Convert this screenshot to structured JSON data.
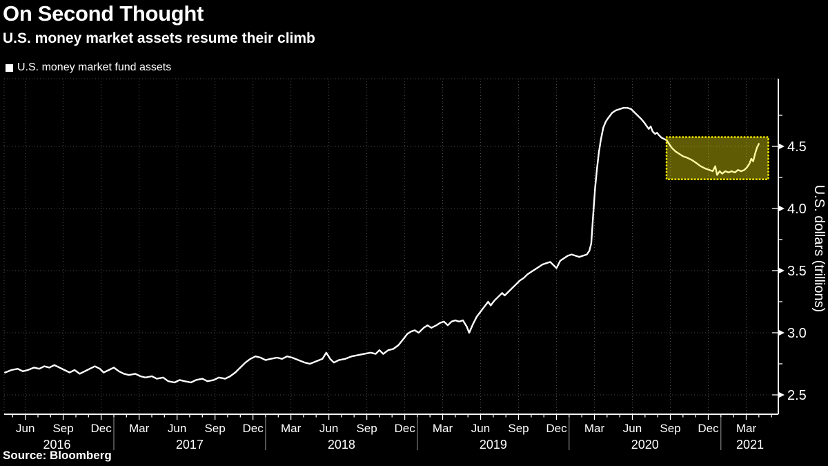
{
  "header": {
    "title": "On Second Thought",
    "subtitle": "U.S. money market assets resume their climb"
  },
  "source_label": "Source: Bloomberg",
  "colors": {
    "background": "#000000",
    "text": "#ffffff",
    "grid": "#4d4d4d",
    "line": "#ffffff",
    "year_divider": "#9a9a9a",
    "highlight_fill": "rgba(250,240,10,0.38)",
    "highlight_border": "#f7ea00"
  },
  "chart_data": {
    "type": "line",
    "title": "On Second Thought",
    "subtitle": "U.S. money market assets resume their climb",
    "xlabel": "",
    "ylabel": "U.S. dollars (trillions)",
    "legend_position": "top-left",
    "grid": "dotted",
    "x_start_month": "2016-04",
    "ylim": [
      2.34,
      5.02
    ],
    "y_ticks": [
      2.5,
      3.0,
      3.5,
      4.0,
      4.5
    ],
    "y_minor_ticks": [
      2.75,
      3.25,
      3.75,
      4.25,
      4.75
    ],
    "x_tick_labels": [
      {
        "m": 2,
        "label": "Jun"
      },
      {
        "m": 5,
        "label": "Sep"
      },
      {
        "m": 8,
        "label": "Dec"
      },
      {
        "m": 11,
        "label": "Mar"
      },
      {
        "m": 14,
        "label": "Jun"
      },
      {
        "m": 17,
        "label": "Sep"
      },
      {
        "m": 20,
        "label": "Dec"
      },
      {
        "m": 23,
        "label": "Mar"
      },
      {
        "m": 26,
        "label": "Jun"
      },
      {
        "m": 29,
        "label": "Sep"
      },
      {
        "m": 32,
        "label": "Dec"
      },
      {
        "m": 35,
        "label": "Mar"
      },
      {
        "m": 38,
        "label": "Jun"
      },
      {
        "m": 41,
        "label": "Sep"
      },
      {
        "m": 44,
        "label": "Dec"
      },
      {
        "m": 47,
        "label": "Mar"
      },
      {
        "m": 50,
        "label": "Jun"
      },
      {
        "m": 53,
        "label": "Sep"
      },
      {
        "m": 56,
        "label": "Dec"
      },
      {
        "m": 59,
        "label": "Mar"
      }
    ],
    "years": [
      {
        "label": "2016",
        "m_center": 4.5
      },
      {
        "label": "2017",
        "m_center": 15
      },
      {
        "label": "2018",
        "m_center": 27
      },
      {
        "label": "2019",
        "m_center": 39
      },
      {
        "label": "2020",
        "m_center": 51
      },
      {
        "label": "2021",
        "m_center": 59.3
      }
    ],
    "year_boundaries_m": [
      9,
      21,
      33,
      45,
      57
    ],
    "highlight_box": {
      "m_start": 52.7,
      "m_end": 60.75,
      "v_low": 4.235,
      "v_high": 4.575
    },
    "series": [
      {
        "name": "U.S. money market fund assets",
        "points": [
          [
            0.4,
            2.68
          ],
          [
            0.9,
            2.7
          ],
          [
            1.4,
            2.71
          ],
          [
            1.8,
            2.69
          ],
          [
            2.2,
            2.7
          ],
          [
            2.7,
            2.72
          ],
          [
            3.1,
            2.71
          ],
          [
            3.5,
            2.73
          ],
          [
            3.9,
            2.72
          ],
          [
            4.3,
            2.74
          ],
          [
            4.7,
            2.72
          ],
          [
            5.1,
            2.7
          ],
          [
            5.5,
            2.68
          ],
          [
            5.9,
            2.7
          ],
          [
            6.3,
            2.67
          ],
          [
            6.7,
            2.69
          ],
          [
            7.1,
            2.71
          ],
          [
            7.5,
            2.73
          ],
          [
            7.9,
            2.71
          ],
          [
            8.2,
            2.68
          ],
          [
            8.6,
            2.7
          ],
          [
            9.0,
            2.72
          ],
          [
            9.4,
            2.69
          ],
          [
            9.8,
            2.67
          ],
          [
            10.2,
            2.66
          ],
          [
            10.7,
            2.67
          ],
          [
            11.1,
            2.65
          ],
          [
            11.5,
            2.64
          ],
          [
            12.0,
            2.65
          ],
          [
            12.4,
            2.63
          ],
          [
            12.9,
            2.64
          ],
          [
            13.3,
            2.61
          ],
          [
            13.8,
            2.6
          ],
          [
            14.2,
            2.62
          ],
          [
            14.6,
            2.61
          ],
          [
            15.1,
            2.6
          ],
          [
            15.5,
            2.62
          ],
          [
            16.0,
            2.63
          ],
          [
            16.4,
            2.61
          ],
          [
            16.9,
            2.62
          ],
          [
            17.3,
            2.64
          ],
          [
            17.8,
            2.63
          ],
          [
            18.2,
            2.65
          ],
          [
            18.6,
            2.68
          ],
          [
            19.0,
            2.72
          ],
          [
            19.4,
            2.76
          ],
          [
            19.8,
            2.79
          ],
          [
            20.2,
            2.81
          ],
          [
            20.6,
            2.8
          ],
          [
            21.0,
            2.78
          ],
          [
            21.4,
            2.79
          ],
          [
            21.9,
            2.8
          ],
          [
            22.3,
            2.79
          ],
          [
            22.7,
            2.81
          ],
          [
            23.1,
            2.8
          ],
          [
            23.6,
            2.78
          ],
          [
            24.1,
            2.76
          ],
          [
            24.5,
            2.75
          ],
          [
            25.0,
            2.77
          ],
          [
            25.5,
            2.79
          ],
          [
            25.8,
            2.84
          ],
          [
            26.1,
            2.79
          ],
          [
            26.4,
            2.76
          ],
          [
            26.8,
            2.78
          ],
          [
            27.3,
            2.79
          ],
          [
            27.8,
            2.81
          ],
          [
            28.3,
            2.82
          ],
          [
            28.8,
            2.83
          ],
          [
            29.3,
            2.84
          ],
          [
            29.7,
            2.83
          ],
          [
            30.0,
            2.86
          ],
          [
            30.3,
            2.83
          ],
          [
            30.7,
            2.86
          ],
          [
            31.1,
            2.87
          ],
          [
            31.5,
            2.9
          ],
          [
            31.9,
            2.95
          ],
          [
            32.2,
            2.99
          ],
          [
            32.5,
            3.01
          ],
          [
            32.8,
            3.02
          ],
          [
            33.1,
            3.0
          ],
          [
            33.5,
            3.04
          ],
          [
            33.8,
            3.06
          ],
          [
            34.1,
            3.04
          ],
          [
            34.5,
            3.06
          ],
          [
            34.8,
            3.08
          ],
          [
            35.1,
            3.09
          ],
          [
            35.4,
            3.06
          ],
          [
            35.7,
            3.09
          ],
          [
            36.0,
            3.1
          ],
          [
            36.3,
            3.09
          ],
          [
            36.6,
            3.1
          ],
          [
            36.9,
            3.05
          ],
          [
            37.1,
            3.0
          ],
          [
            37.4,
            3.07
          ],
          [
            37.7,
            3.13
          ],
          [
            38.0,
            3.17
          ],
          [
            38.3,
            3.21
          ],
          [
            38.6,
            3.25
          ],
          [
            38.8,
            3.22
          ],
          [
            39.1,
            3.26
          ],
          [
            39.4,
            3.29
          ],
          [
            39.7,
            3.32
          ],
          [
            39.9,
            3.3
          ],
          [
            40.2,
            3.33
          ],
          [
            40.5,
            3.36
          ],
          [
            40.8,
            3.39
          ],
          [
            41.1,
            3.42
          ],
          [
            41.4,
            3.44
          ],
          [
            41.7,
            3.47
          ],
          [
            42.0,
            3.49
          ],
          [
            42.3,
            3.51
          ],
          [
            42.6,
            3.53
          ],
          [
            42.9,
            3.55
          ],
          [
            43.2,
            3.56
          ],
          [
            43.5,
            3.57
          ],
          [
            44.0,
            3.52
          ],
          [
            44.3,
            3.58
          ],
          [
            44.6,
            3.6
          ],
          [
            44.9,
            3.62
          ],
          [
            45.2,
            3.63
          ],
          [
            45.5,
            3.62
          ],
          [
            45.8,
            3.61
          ],
          [
            46.1,
            3.62
          ],
          [
            46.4,
            3.63
          ],
          [
            46.6,
            3.66
          ],
          [
            46.75,
            3.72
          ],
          [
            46.9,
            3.95
          ],
          [
            47.05,
            4.16
          ],
          [
            47.2,
            4.32
          ],
          [
            47.35,
            4.45
          ],
          [
            47.5,
            4.55
          ],
          [
            47.7,
            4.65
          ],
          [
            47.9,
            4.7
          ],
          [
            48.1,
            4.73
          ],
          [
            48.4,
            4.77
          ],
          [
            48.7,
            4.79
          ],
          [
            49.0,
            4.8
          ],
          [
            49.3,
            4.81
          ],
          [
            49.6,
            4.81
          ],
          [
            49.9,
            4.8
          ],
          [
            50.1,
            4.78
          ],
          [
            50.4,
            4.75
          ],
          [
            50.7,
            4.72
          ],
          [
            50.95,
            4.69
          ],
          [
            51.15,
            4.66
          ],
          [
            51.3,
            4.64
          ],
          [
            51.45,
            4.66
          ],
          [
            51.6,
            4.62
          ],
          [
            51.8,
            4.6
          ],
          [
            51.95,
            4.61
          ],
          [
            52.1,
            4.59
          ],
          [
            52.3,
            4.57
          ],
          [
            52.5,
            4.56
          ],
          [
            52.7,
            4.55
          ],
          [
            52.9,
            4.52
          ],
          [
            53.1,
            4.49
          ],
          [
            53.4,
            4.46
          ],
          [
            53.7,
            4.44
          ],
          [
            54.0,
            4.42
          ],
          [
            54.3,
            4.41
          ],
          [
            54.7,
            4.39
          ],
          [
            55.0,
            4.37
          ],
          [
            55.4,
            4.34
          ],
          [
            55.8,
            4.32
          ],
          [
            56.1,
            4.31
          ],
          [
            56.35,
            4.3
          ],
          [
            56.55,
            4.34
          ],
          [
            56.7,
            4.27
          ],
          [
            56.9,
            4.3
          ],
          [
            57.1,
            4.28
          ],
          [
            57.35,
            4.3
          ],
          [
            57.6,
            4.29
          ],
          [
            57.85,
            4.3
          ],
          [
            58.1,
            4.29
          ],
          [
            58.35,
            4.31
          ],
          [
            58.6,
            4.3
          ],
          [
            58.85,
            4.31
          ],
          [
            59.05,
            4.33
          ],
          [
            59.25,
            4.36
          ],
          [
            59.4,
            4.4
          ],
          [
            59.55,
            4.38
          ],
          [
            59.7,
            4.44
          ],
          [
            59.85,
            4.49
          ],
          [
            60.0,
            4.52
          ]
        ]
      }
    ]
  }
}
